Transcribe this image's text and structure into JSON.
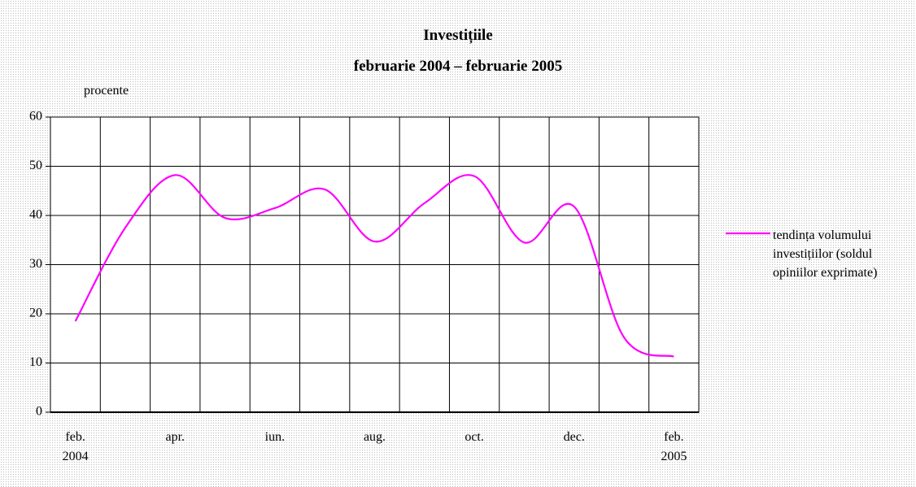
{
  "chart_data": {
    "type": "line",
    "title": "Investițiile",
    "subtitle": "februarie 2004 – februarie 2005",
    "y_label": "procente",
    "categories": [
      "feb.\n2004",
      null,
      "apr.",
      null,
      "iun.",
      null,
      "aug.",
      null,
      "oct.",
      null,
      "dec.",
      null,
      "feb.\n2005"
    ],
    "series": [
      {
        "name": "tendința volumului investițiilor (soldul opiniilor exprimate)",
        "color": "#ff00ff",
        "values": [
          18.5,
          37.5,
          48.2,
          39.5,
          41.5,
          45.3,
          34.7,
          42.5,
          48,
          34.5,
          41.8,
          15.2,
          11.3
        ]
      }
    ],
    "ylim": [
      0,
      60
    ],
    "yticks": [
      0,
      10,
      20,
      30,
      40,
      50,
      60
    ],
    "grid": true,
    "legend": "right"
  }
}
